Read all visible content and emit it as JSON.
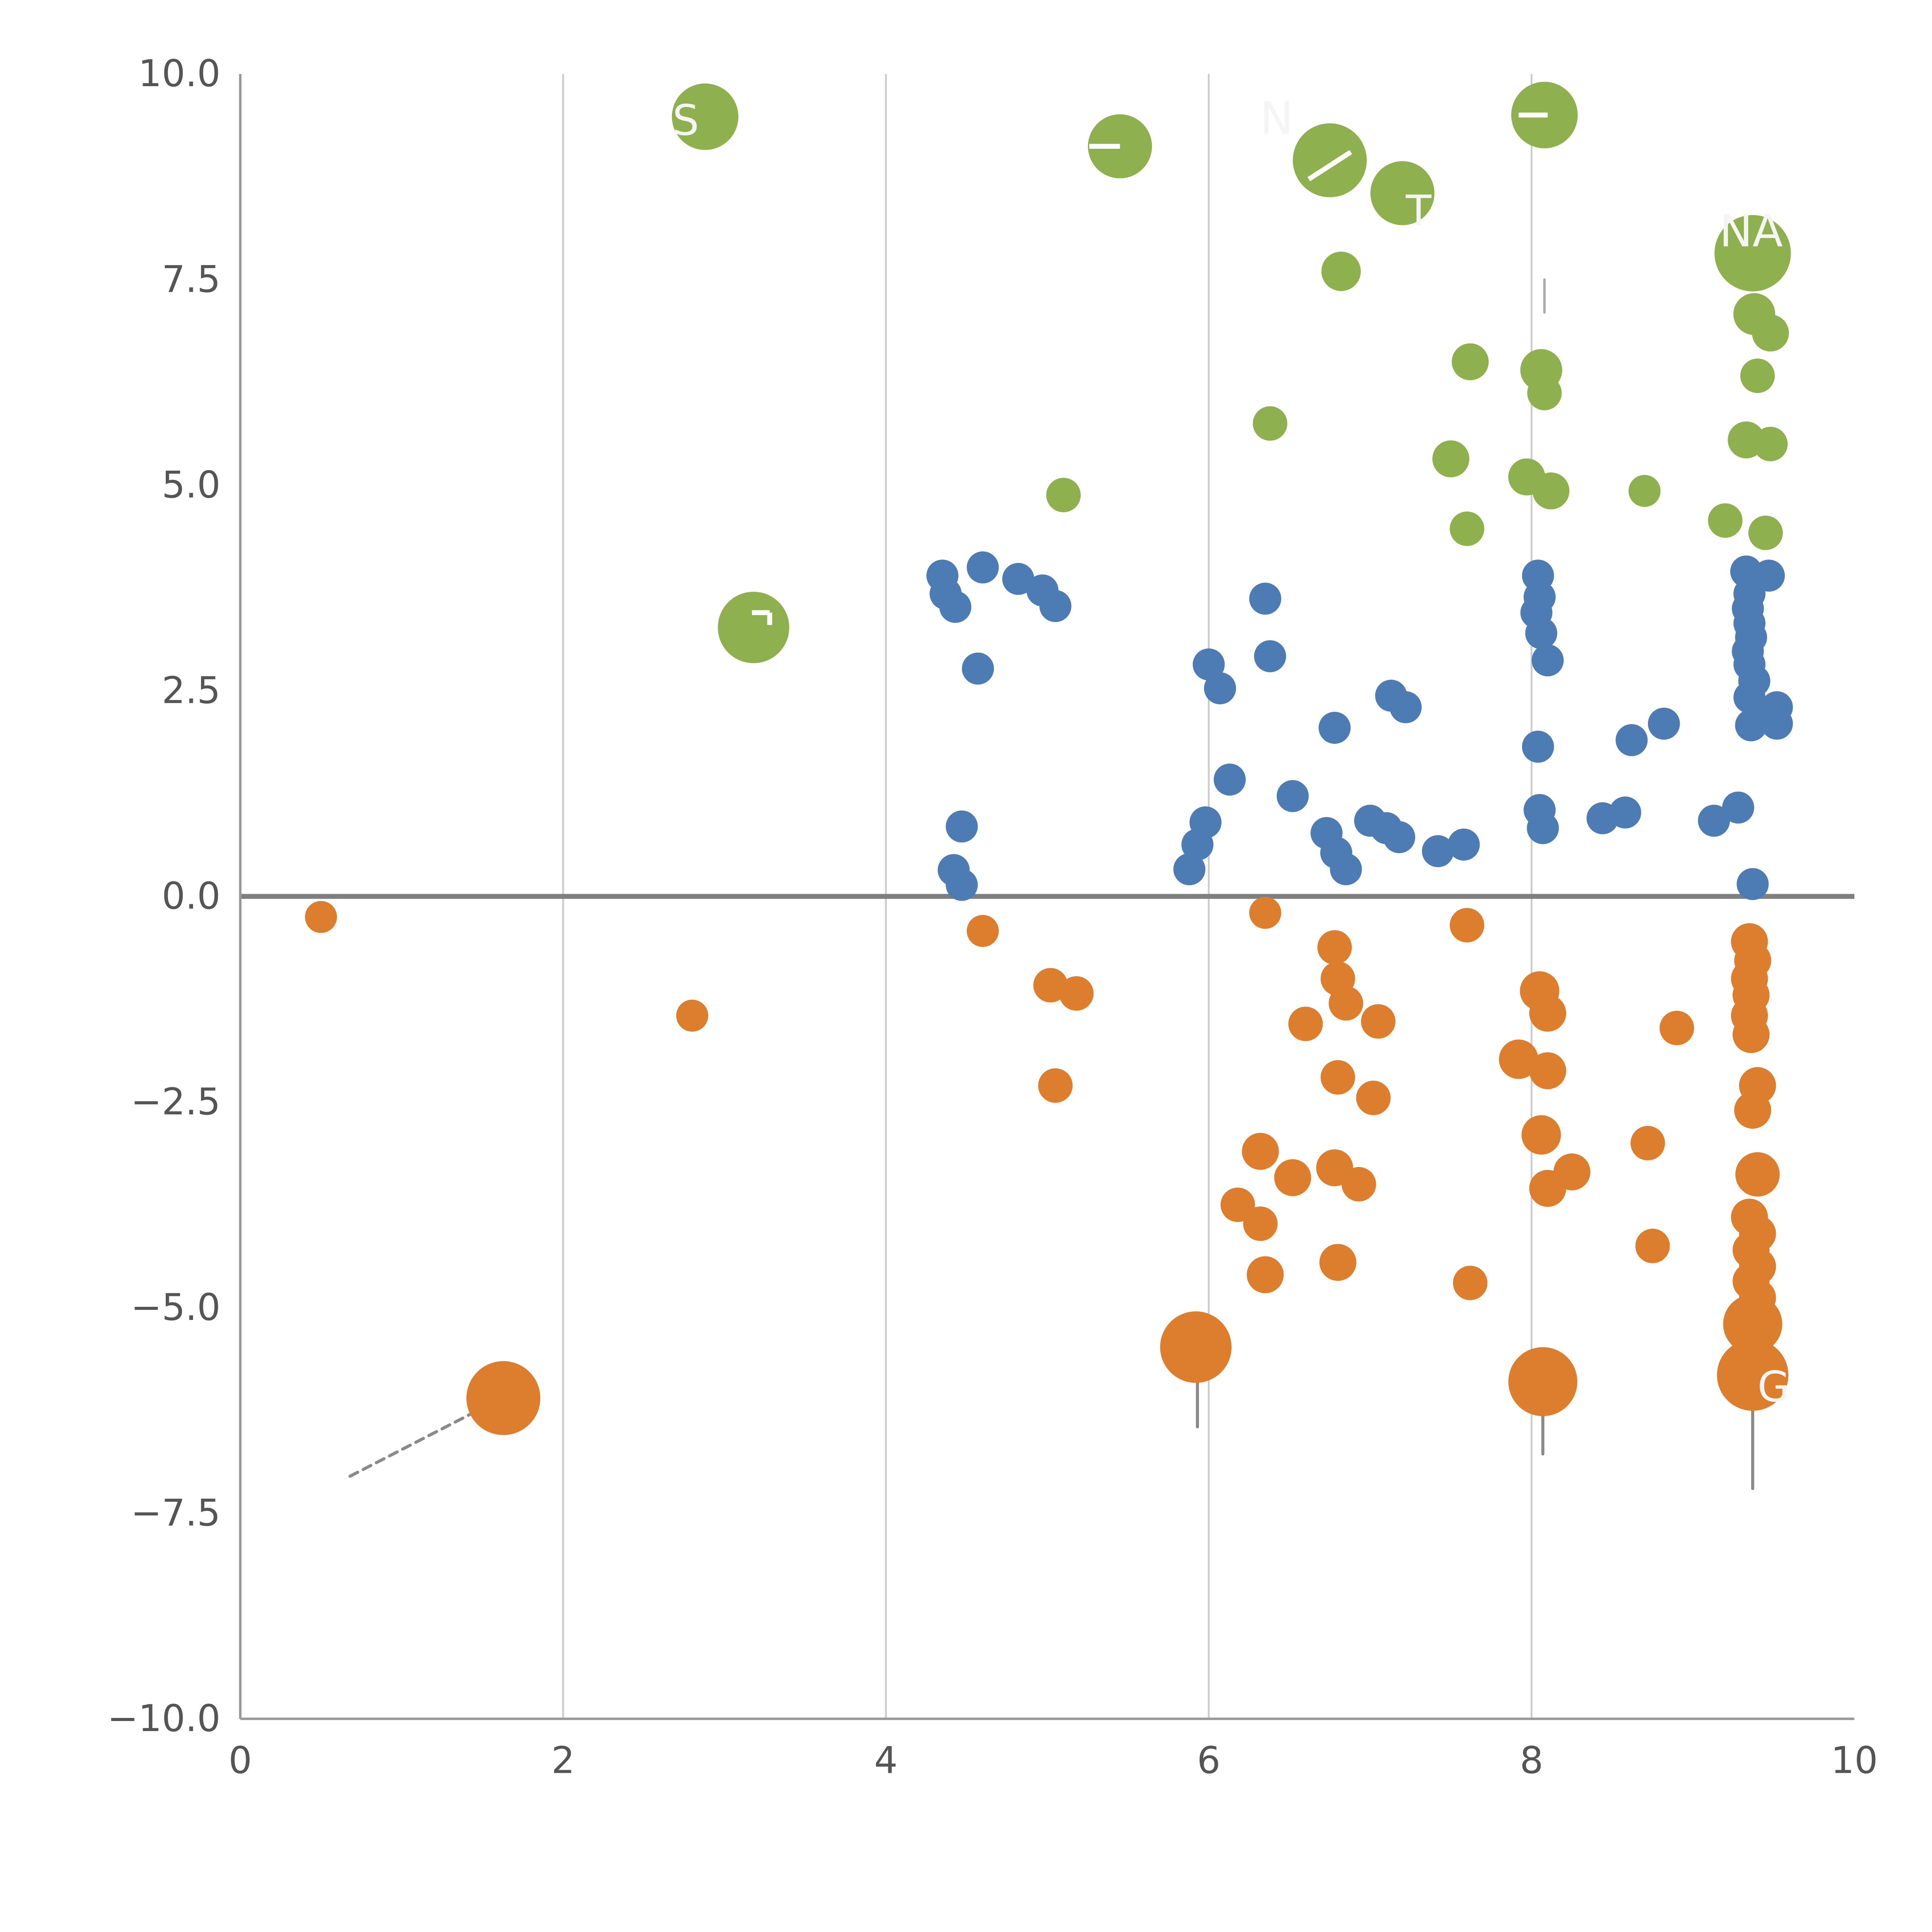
{
  "page": {
    "background": "#ffffff"
  },
  "chart_data": {
    "type": "scatter",
    "title": "",
    "xlabel": "",
    "ylabel": "",
    "xlim": [
      0,
      10
    ],
    "ylim": [
      -10,
      10
    ],
    "grid": "vertical-only",
    "legend": "none",
    "x_ticks": [
      {
        "v": 0,
        "label": "0"
      },
      {
        "v": 2,
        "label": "2"
      },
      {
        "v": 4,
        "label": "4"
      },
      {
        "v": 6,
        "label": "6"
      },
      {
        "v": 8,
        "label": "8"
      },
      {
        "v": 10,
        "label": "10"
      }
    ],
    "y_ticks": [
      {
        "v": 10,
        "label": "10.0"
      },
      {
        "v": 7.5,
        "label": "7.5"
      },
      {
        "v": 5,
        "label": "5.0"
      },
      {
        "v": 2.5,
        "label": "2.5"
      },
      {
        "v": 0,
        "label": "0.0"
      },
      {
        "v": -2.5,
        "label": "−2.5"
      },
      {
        "v": -5,
        "label": "−5.0"
      },
      {
        "v": -7.5,
        "label": "−7.5"
      },
      {
        "v": -10,
        "label": "−10.0"
      }
    ],
    "gridlines_x": [
      2,
      4,
      6,
      8
    ],
    "zero_line": {
      "y": 0,
      "color": "#7f7f7f",
      "width": 4
    },
    "axis_color": "#999999",
    "grid_color": "#cccccc",
    "tick_label_color": "#555555",
    "tick_font_size": 30,
    "point_columns": [
      "x",
      "y",
      "r"
    ],
    "series": [
      {
        "name": "green",
        "color": "#8fb04e",
        "points": [
          [
            2.88,
            9.48,
            27
          ],
          [
            5.45,
            9.12,
            26
          ],
          [
            6.75,
            8.95,
            30
          ],
          [
            7.2,
            8.55,
            26
          ],
          [
            8.08,
            9.5,
            27
          ],
          [
            9.37,
            7.82,
            31
          ],
          [
            3.18,
            3.27,
            29
          ],
          [
            6.82,
            7.6,
            16
          ],
          [
            9.38,
            7.08,
            17
          ],
          [
            9.48,
            6.85,
            15
          ],
          [
            7.62,
            6.5,
            15
          ],
          [
            8.06,
            6.4,
            17
          ],
          [
            8.08,
            6.12,
            14
          ],
          [
            9.4,
            6.33,
            14
          ],
          [
            6.38,
            5.75,
            14
          ],
          [
            7.5,
            5.32,
            15
          ],
          [
            5.1,
            4.88,
            14
          ],
          [
            7.97,
            5.1,
            15
          ],
          [
            8.12,
            4.93,
            15
          ],
          [
            8.7,
            4.93,
            13
          ],
          [
            9.2,
            4.57,
            14
          ],
          [
            9.45,
            4.42,
            14
          ],
          [
            9.33,
            5.55,
            15
          ],
          [
            9.48,
            5.5,
            14
          ],
          [
            7.6,
            4.47,
            14
          ]
        ]
      },
      {
        "name": "blue",
        "color": "#4d7bb4",
        "points": [
          [
            4.35,
            3.9,
            13
          ],
          [
            4.37,
            3.68,
            13
          ],
          [
            4.43,
            3.52,
            13
          ],
          [
            4.6,
            4.0,
            13
          ],
          [
            4.82,
            3.86,
            13
          ],
          [
            4.97,
            3.72,
            13
          ],
          [
            5.05,
            3.53,
            13
          ],
          [
            4.57,
            2.77,
            13
          ],
          [
            4.47,
            0.85,
            13
          ],
          [
            4.42,
            0.32,
            13
          ],
          [
            4.47,
            0.14,
            13
          ],
          [
            6.0,
            2.82,
            13
          ],
          [
            6.07,
            2.53,
            13
          ],
          [
            6.35,
            3.62,
            13
          ],
          [
            6.38,
            2.92,
            13
          ],
          [
            6.13,
            1.42,
            13
          ],
          [
            5.88,
            0.33,
            13
          ],
          [
            5.93,
            0.63,
            13
          ],
          [
            5.98,
            0.9,
            13
          ],
          [
            6.52,
            1.22,
            13
          ],
          [
            6.78,
            2.05,
            13
          ],
          [
            6.73,
            0.77,
            13
          ],
          [
            6.79,
            0.53,
            13
          ],
          [
            6.85,
            0.33,
            13
          ],
          [
            7.0,
            0.92,
            13
          ],
          [
            7.1,
            0.83,
            13
          ],
          [
            7.18,
            0.72,
            13
          ],
          [
            7.13,
            2.44,
            13
          ],
          [
            7.22,
            2.3,
            13
          ],
          [
            7.42,
            0.55,
            13
          ],
          [
            7.58,
            0.63,
            13
          ],
          [
            8.04,
            3.9,
            13
          ],
          [
            8.05,
            3.64,
            13
          ],
          [
            8.03,
            3.45,
            13
          ],
          [
            8.06,
            3.2,
            13
          ],
          [
            8.1,
            2.87,
            13
          ],
          [
            8.04,
            1.82,
            13
          ],
          [
            8.05,
            1.05,
            13
          ],
          [
            8.07,
            0.83,
            13
          ],
          [
            8.44,
            0.95,
            13
          ],
          [
            8.58,
            1.02,
            13
          ],
          [
            8.62,
            1.9,
            13
          ],
          [
            8.82,
            2.1,
            13
          ],
          [
            9.13,
            0.92,
            13
          ],
          [
            9.28,
            1.08,
            13
          ],
          [
            9.33,
            3.95,
            13
          ],
          [
            9.47,
            3.9,
            13
          ],
          [
            9.35,
            3.68,
            13
          ],
          [
            9.34,
            3.5,
            13
          ],
          [
            9.35,
            3.32,
            13
          ],
          [
            9.36,
            3.15,
            13
          ],
          [
            9.34,
            2.98,
            13
          ],
          [
            9.35,
            2.82,
            13
          ],
          [
            9.38,
            2.62,
            13
          ],
          [
            9.35,
            2.42,
            13
          ],
          [
            9.42,
            2.25,
            13
          ],
          [
            9.36,
            2.08,
            13
          ],
          [
            9.52,
            2.3,
            13
          ],
          [
            9.52,
            2.1,
            13
          ],
          [
            9.37,
            0.15,
            13
          ]
        ]
      },
      {
        "name": "orange",
        "color": "#dd7e2e",
        "points": [
          [
            0.5,
            -0.25,
            13
          ],
          [
            2.8,
            -1.45,
            13
          ],
          [
            4.6,
            -0.42,
            13
          ],
          [
            5.02,
            -1.08,
            14
          ],
          [
            5.18,
            -1.18,
            14
          ],
          [
            5.05,
            -2.3,
            14
          ],
          [
            6.35,
            -0.2,
            13
          ],
          [
            6.78,
            -0.62,
            14
          ],
          [
            6.8,
            -1.0,
            14
          ],
          [
            6.85,
            -1.3,
            14
          ],
          [
            6.6,
            -1.55,
            14
          ],
          [
            7.05,
            -1.52,
            14
          ],
          [
            6.8,
            -2.2,
            14
          ],
          [
            7.02,
            -2.45,
            14
          ],
          [
            7.6,
            -0.35,
            14
          ],
          [
            8.05,
            -1.15,
            16
          ],
          [
            8.1,
            -1.42,
            15
          ],
          [
            7.92,
            -1.98,
            16
          ],
          [
            8.1,
            -2.12,
            15
          ],
          [
            8.9,
            -1.6,
            14
          ],
          [
            6.32,
            -3.1,
            15
          ],
          [
            6.52,
            -3.42,
            15
          ],
          [
            6.78,
            -3.3,
            15
          ],
          [
            6.93,
            -3.5,
            14
          ],
          [
            6.18,
            -3.75,
            14
          ],
          [
            6.32,
            -3.98,
            14
          ],
          [
            6.35,
            -4.6,
            15
          ],
          [
            6.8,
            -4.45,
            15
          ],
          [
            7.62,
            -4.7,
            14
          ],
          [
            8.06,
            -2.9,
            16
          ],
          [
            8.1,
            -3.55,
            15
          ],
          [
            8.25,
            -3.35,
            15
          ],
          [
            8.72,
            -3.0,
            14
          ],
          [
            8.75,
            -4.25,
            14
          ],
          [
            9.35,
            -0.55,
            15
          ],
          [
            9.37,
            -0.78,
            15
          ],
          [
            9.35,
            -1.0,
            15
          ],
          [
            9.36,
            -1.2,
            15
          ],
          [
            9.35,
            -1.45,
            15
          ],
          [
            9.36,
            -1.68,
            15
          ],
          [
            9.4,
            -2.3,
            15
          ],
          [
            9.37,
            -2.6,
            15
          ],
          [
            9.4,
            -3.38,
            18
          ],
          [
            9.35,
            -3.9,
            15
          ],
          [
            9.4,
            -4.1,
            15
          ],
          [
            9.36,
            -4.3,
            15
          ],
          [
            9.4,
            -4.5,
            15
          ],
          [
            9.36,
            -4.68,
            15
          ],
          [
            9.4,
            -4.88,
            15
          ],
          [
            9.37,
            -5.2,
            24
          ],
          [
            9.37,
            -5.82,
            29
          ],
          [
            5.92,
            -5.48,
            29
          ],
          [
            8.07,
            -5.9,
            28
          ],
          [
            1.63,
            -6.1,
            30
          ]
        ]
      }
    ],
    "annotation_lines": [
      {
        "x1": 0.68,
        "y1": -7.05,
        "x2": 1.6,
        "y2": -6.12,
        "color": "#8a8a8a",
        "w": 2.5,
        "dash": "7,5"
      },
      {
        "x1": 5.93,
        "y1": -5.6,
        "x2": 5.93,
        "y2": -6.45,
        "color": "#8a8a8a",
        "w": 2.5,
        "dash": ""
      },
      {
        "x1": 8.07,
        "y1": -6.0,
        "x2": 8.07,
        "y2": -6.78,
        "color": "#8a8a8a",
        "w": 2.5,
        "dash": ""
      },
      {
        "x1": 9.37,
        "y1": -5.4,
        "x2": 9.37,
        "y2": -7.2,
        "color": "#8a8a8a",
        "w": 2.5,
        "dash": ""
      },
      {
        "x1": 8.08,
        "y1": 7.1,
        "x2": 8.08,
        "y2": 7.5,
        "color": "#aaaaaa",
        "w": 2,
        "dash": ""
      }
    ],
    "white_marks": [
      {
        "x1": 5.26,
        "y1": 9.12,
        "x2": 5.45,
        "y2": 9.12
      },
      {
        "x1": 6.62,
        "y1": 8.72,
        "x2": 6.88,
        "y2": 9.05
      },
      {
        "x1": 7.92,
        "y1": 9.5,
        "x2": 8.1,
        "y2": 9.5
      },
      {
        "x1": 3.17,
        "y1": 3.45,
        "x2": 3.28,
        "y2": 3.45
      },
      {
        "x1": 3.28,
        "y1": 3.3,
        "x2": 3.28,
        "y2": 3.45
      }
    ],
    "point_labels": [
      {
        "x": 2.76,
        "y": 9.4,
        "text": "S",
        "size": 34
      },
      {
        "x": 6.42,
        "y": 9.42,
        "text": "N",
        "size": 36
      },
      {
        "x": 7.3,
        "y": 8.3,
        "text": "T",
        "size": 34
      },
      {
        "x": 9.36,
        "y": 8.05,
        "text": "NA",
        "size": 36
      },
      {
        "x": 9.5,
        "y": -6.0,
        "text": "G",
        "size": 34
      }
    ],
    "label_color": "#f5f5f5"
  }
}
